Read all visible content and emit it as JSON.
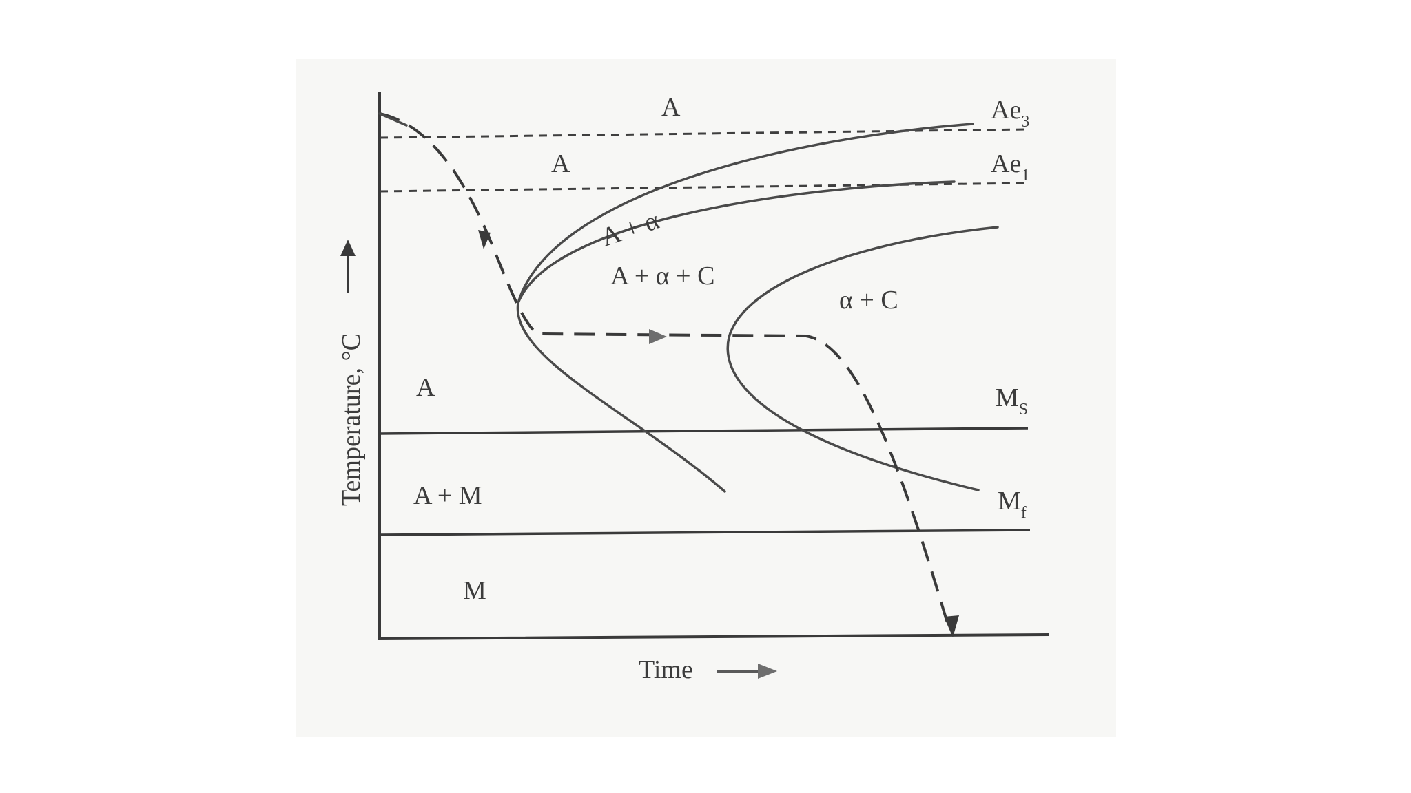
{
  "axes": {
    "y_title": "Temperature, °C",
    "x_title": "Time"
  },
  "lines": {
    "ae3": {
      "base": "Ae",
      "sub": "3"
    },
    "ae1": {
      "base": "Ae",
      "sub": "1"
    },
    "ms": {
      "base": "M",
      "sub": "S"
    },
    "mf": {
      "base": "M",
      "sub": "f"
    }
  },
  "regions": {
    "a_top": "A",
    "a_between": "A",
    "a_alpha": "A + α",
    "a_alpha_c": "A + α + C",
    "alpha_c": "α + C",
    "a_left": "A",
    "a_m": "A + M",
    "m": "M"
  },
  "colors": {
    "ink": "#3a3a3a",
    "paper": "#f7f7f5"
  }
}
